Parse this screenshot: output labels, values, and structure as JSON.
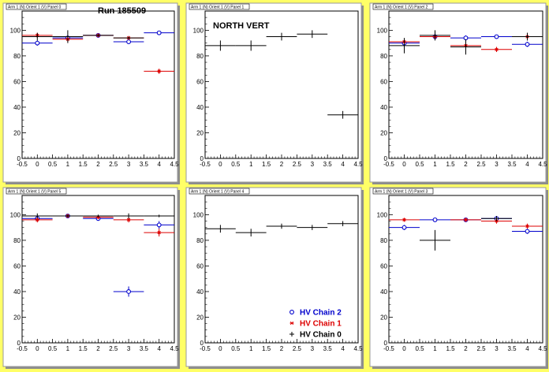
{
  "colors": {
    "background": "#ffff66",
    "chain2": "#0000cc",
    "chain1": "#dd0000",
    "chain0": "#000000"
  },
  "legend": [
    {
      "label": "HV Chain 2",
      "color": "#0000cc",
      "marker": "open-circle"
    },
    {
      "label": "HV Chain 1",
      "color": "#dd0000",
      "marker": "star"
    },
    {
      "label": "HV Chain 0",
      "color": "#000000",
      "marker": "plus"
    }
  ],
  "chart_data": [
    {
      "type": "scatter",
      "title": "Arm 1 (N) Orient 1 (V) Panel 0",
      "annotation": "Run 185509",
      "xlim": [
        -0.5,
        4.5
      ],
      "ylim": [
        0,
        115
      ],
      "xticks": [
        "-0.5",
        "0",
        "0.5",
        "1",
        "1.5",
        "2",
        "2.5",
        "3",
        "3.5",
        "4",
        "4.5"
      ],
      "yticks": [
        "0",
        "20",
        "40",
        "60",
        "80",
        "100"
      ],
      "series": [
        {
          "name": "HV Chain 2",
          "color": "#0000cc",
          "marker": "open-circle",
          "x": [
            0,
            1,
            2,
            3,
            4
          ],
          "y": [
            90,
            94,
            96,
            91,
            98
          ],
          "xerr": [
            0.5,
            0.5,
            0.5,
            0.5,
            0.5
          ],
          "yerr": [
            2,
            2,
            1,
            1,
            0
          ]
        },
        {
          "name": "HV Chain 1",
          "color": "#dd0000",
          "marker": "star",
          "x": [
            0,
            1,
            2,
            3,
            4
          ],
          "y": [
            96,
            93,
            96,
            94,
            68
          ],
          "xerr": [
            0.5,
            0.5,
            0.5,
            0.5,
            0.5
          ],
          "yerr": [
            2,
            2,
            1,
            1,
            2
          ]
        },
        {
          "name": "HV Chain 0",
          "color": "#000000",
          "marker": "plus",
          "x": [
            0,
            1,
            2,
            3
          ],
          "y": [
            95,
            95,
            96,
            94
          ],
          "xerr": [
            0.5,
            0.5,
            0.5,
            0.5
          ],
          "yerr": [
            3,
            5,
            1,
            1
          ]
        }
      ]
    },
    {
      "type": "scatter",
      "title": "Arm 1 (N) Orient 1 (V) Panel 1",
      "annotation": "NORTH VERT",
      "xlim": [
        -0.5,
        4.5
      ],
      "ylim": [
        0,
        115
      ],
      "xticks": [
        "-0.5",
        "0",
        "0.5",
        "1",
        "1.5",
        "2",
        "2.5",
        "3",
        "3.5",
        "4",
        "4.5"
      ],
      "yticks": [
        "0",
        "20",
        "40",
        "60",
        "80",
        "100"
      ],
      "series": [
        {
          "name": "HV Chain 0",
          "color": "#000000",
          "marker": "plus",
          "x": [
            0,
            1,
            2,
            3,
            4
          ],
          "y": [
            88,
            88,
            95,
            97,
            34
          ],
          "xerr": [
            0.5,
            0.5,
            0.5,
            0.5,
            0.5
          ],
          "yerr": [
            4,
            4,
            3,
            3,
            3
          ]
        }
      ]
    },
    {
      "type": "scatter",
      "title": "Arm 1 (N) Orient 1 (V) Panel 2",
      "annotation": "",
      "xlim": [
        -0.5,
        4.5
      ],
      "ylim": [
        0,
        115
      ],
      "xticks": [
        "-0.5",
        "0",
        "0.5",
        "1",
        "1.5",
        "2",
        "2.5",
        "3",
        "3.5",
        "4",
        "4.5"
      ],
      "yticks": [
        "0",
        "20",
        "40",
        "60",
        "80",
        "100"
      ],
      "series": [
        {
          "name": "HV Chain 2",
          "color": "#0000cc",
          "marker": "open-circle",
          "x": [
            0,
            1,
            2,
            3,
            4
          ],
          "y": [
            90,
            95,
            94,
            95,
            89
          ],
          "xerr": [
            0.5,
            0.5,
            0.5,
            0.5,
            0.5
          ],
          "yerr": [
            2,
            2,
            2,
            1,
            2
          ]
        },
        {
          "name": "HV Chain 1",
          "color": "#dd0000",
          "marker": "star",
          "x": [
            0,
            1,
            2,
            3,
            4
          ],
          "y": [
            91,
            95,
            88,
            85,
            95
          ],
          "xerr": [
            0.5,
            0.5,
            0.5,
            0.5,
            0.5
          ],
          "yerr": [
            2,
            2,
            2,
            2,
            3
          ]
        },
        {
          "name": "HV Chain 0",
          "color": "#000000",
          "marker": "plus",
          "x": [
            0,
            1,
            2,
            4
          ],
          "y": [
            88,
            96,
            87,
            95
          ],
          "xerr": [
            0.5,
            0.5,
            0.5,
            0.5
          ],
          "yerr": [
            6,
            4,
            6,
            3
          ]
        }
      ]
    },
    {
      "type": "scatter",
      "title": "Arm 1 (N) Orient 1 (V) Panel 5",
      "annotation": "",
      "xlim": [
        -0.5,
        4.5
      ],
      "ylim": [
        0,
        115
      ],
      "xticks": [
        "-0.5",
        "0",
        "0.5",
        "1",
        "1.5",
        "2",
        "2.5",
        "3",
        "3.5",
        "4",
        "4.5"
      ],
      "yticks": [
        "0",
        "20",
        "40",
        "60",
        "80",
        "100"
      ],
      "series": [
        {
          "name": "HV Chain 2",
          "color": "#0000cc",
          "marker": "open-circle",
          "x": [
            0,
            1,
            2,
            3,
            4
          ],
          "y": [
            97,
            99,
            97,
            40,
            92
          ],
          "xerr": [
            0.5,
            0.5,
            0.5,
            0.5,
            0.5
          ],
          "yerr": [
            1,
            1,
            1,
            4,
            3
          ]
        },
        {
          "name": "HV Chain 1",
          "color": "#dd0000",
          "marker": "star",
          "x": [
            0,
            1,
            2,
            3,
            4
          ],
          "y": [
            96,
            99,
            98,
            96,
            86
          ],
          "xerr": [
            0.5,
            0.5,
            0.5,
            0.5,
            0.5
          ],
          "yerr": [
            2,
            1,
            1,
            2,
            3
          ]
        },
        {
          "name": "HV Chain 0",
          "color": "#000000",
          "marker": "plus",
          "x": [
            0,
            1,
            2,
            3,
            4
          ],
          "y": [
            99,
            99,
            99,
            99,
            99
          ],
          "xerr": [
            0.5,
            0.5,
            0.5,
            0.5,
            0.5
          ],
          "yerr": [
            2,
            1,
            1,
            2,
            1
          ]
        }
      ]
    },
    {
      "type": "scatter",
      "title": "Arm 1 (N) Orient 1 (V) Panel 4",
      "annotation": "",
      "xlim": [
        -0.5,
        4.5
      ],
      "ylim": [
        0,
        115
      ],
      "xticks": [
        "-0.5",
        "0",
        "0.5",
        "1",
        "1.5",
        "2",
        "2.5",
        "3",
        "3.5",
        "4",
        "4.5"
      ],
      "yticks": [
        "0",
        "20",
        "40",
        "60",
        "80",
        "100"
      ],
      "series": [
        {
          "name": "HV Chain 0",
          "color": "#000000",
          "marker": "plus",
          "x": [
            0,
            1,
            2,
            3,
            4
          ],
          "y": [
            89,
            86,
            91,
            90,
            93
          ],
          "xerr": [
            0.5,
            0.5,
            0.5,
            0.5,
            0.5
          ],
          "yerr": [
            3,
            3,
            2,
            2,
            2
          ]
        }
      ],
      "show_legend": true
    },
    {
      "type": "scatter",
      "title": "Arm 1 (N) Orient 1 (V) Panel 3",
      "annotation": "",
      "xlim": [
        -0.5,
        4.5
      ],
      "ylim": [
        0,
        115
      ],
      "xticks": [
        "-0.5",
        "0",
        "0.5",
        "1",
        "1.5",
        "2",
        "2.5",
        "3",
        "3.5",
        "4",
        "4.5"
      ],
      "yticks": [
        "0",
        "20",
        "40",
        "60",
        "80",
        "100"
      ],
      "series": [
        {
          "name": "HV Chain 2",
          "color": "#0000cc",
          "marker": "open-circle",
          "x": [
            0,
            1,
            2,
            3,
            4
          ],
          "y": [
            90,
            96,
            96,
            97,
            87
          ],
          "xerr": [
            0.5,
            0.5,
            0.5,
            0.5,
            0.5
          ],
          "yerr": [
            2,
            1,
            1,
            1,
            2
          ]
        },
        {
          "name": "HV Chain 1",
          "color": "#dd0000",
          "marker": "star",
          "x": [
            0,
            2,
            3,
            4
          ],
          "y": [
            96,
            96,
            95,
            91
          ],
          "xerr": [
            0.5,
            0.5,
            0.5,
            0.5
          ],
          "yerr": [
            1,
            1,
            2,
            2
          ]
        },
        {
          "name": "HV Chain 0",
          "color": "#000000",
          "marker": "plus",
          "x": [
            1,
            3
          ],
          "y": [
            80,
            97
          ],
          "xerr": [
            0.5,
            0.5
          ],
          "yerr": [
            8,
            2
          ]
        }
      ]
    }
  ]
}
